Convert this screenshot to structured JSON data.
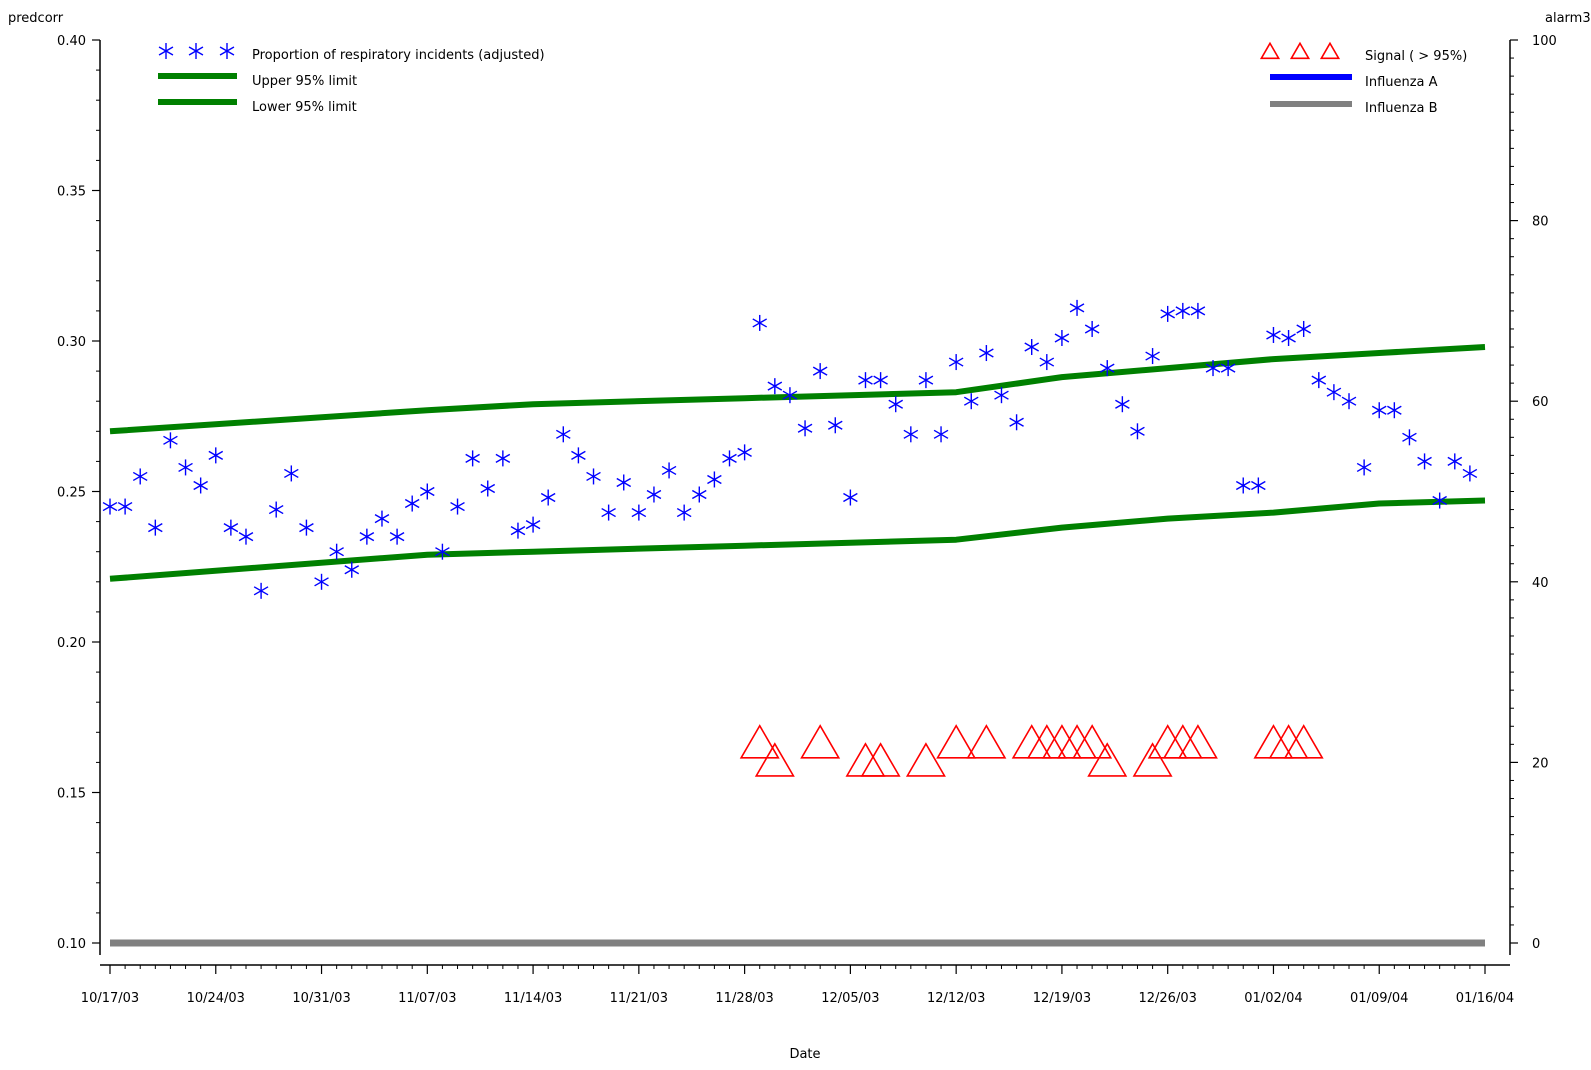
{
  "chart_data": {
    "type": "scatter",
    "xlabel": "Date",
    "ylabel_left": "predcorr",
    "ylabel_right": "alarm3",
    "xlim": [
      "2003-10-17",
      "2004-01-16"
    ],
    "ylim_left": [
      0.1,
      0.4
    ],
    "ylim_right": [
      0,
      100
    ],
    "x_ticks": [
      "10/17/03",
      "10/24/03",
      "10/31/03",
      "11/07/03",
      "11/14/03",
      "11/21/03",
      "11/28/03",
      "12/05/03",
      "12/12/03",
      "12/19/03",
      "12/26/03",
      "01/02/04",
      "01/09/04",
      "01/16/04"
    ],
    "y_ticks_left": [
      "0.10",
      "0.15",
      "0.20",
      "0.25",
      "0.30",
      "0.35",
      "0.40"
    ],
    "y_ticks_right": [
      "0",
      "20",
      "40",
      "60",
      "80",
      "100"
    ],
    "legend_left": [
      {
        "label": "Proportion of respiratory incidents (adjusted)",
        "marker": "asterisk",
        "color": "#0000ff"
      },
      {
        "label": "Upper 95% limit",
        "marker": "line",
        "color": "#008000"
      },
      {
        "label": "Lower 95% limit",
        "marker": "line",
        "color": "#008000"
      }
    ],
    "legend_right": [
      {
        "label": "Signal ( > 95%)",
        "marker": "triangle",
        "color": "#ff0000"
      },
      {
        "label": "Influenza A",
        "marker": "line",
        "color": "#0000ff"
      },
      {
        "label": "Influenza B",
        "marker": "line",
        "color": "#808080"
      }
    ],
    "series": [
      {
        "name": "Proportion of respiratory incidents (adjusted)",
        "axis": "left",
        "marker": "asterisk",
        "color": "#0000ff",
        "points": [
          [
            "2003-10-17",
            0.245
          ],
          [
            "2003-10-18",
            0.245
          ],
          [
            "2003-10-19",
            0.255
          ],
          [
            "2003-10-20",
            0.238
          ],
          [
            "2003-10-21",
            0.267
          ],
          [
            "2003-10-22",
            0.258
          ],
          [
            "2003-10-23",
            0.252
          ],
          [
            "2003-10-24",
            0.262
          ],
          [
            "2003-10-25",
            0.238
          ],
          [
            "2003-10-26",
            0.235
          ],
          [
            "2003-10-27",
            0.217
          ],
          [
            "2003-10-28",
            0.244
          ],
          [
            "2003-10-29",
            0.256
          ],
          [
            "2003-10-30",
            0.238
          ],
          [
            "2003-10-31",
            0.22
          ],
          [
            "2003-11-01",
            0.23
          ],
          [
            "2003-11-02",
            0.224
          ],
          [
            "2003-11-03",
            0.235
          ],
          [
            "2003-11-04",
            0.241
          ],
          [
            "2003-11-05",
            0.235
          ],
          [
            "2003-11-06",
            0.246
          ],
          [
            "2003-11-07",
            0.25
          ],
          [
            "2003-11-08",
            0.23
          ],
          [
            "2003-11-09",
            0.245
          ],
          [
            "2003-11-10",
            0.261
          ],
          [
            "2003-11-11",
            0.251
          ],
          [
            "2003-11-12",
            0.261
          ],
          [
            "2003-11-13",
            0.237
          ],
          [
            "2003-11-14",
            0.239
          ],
          [
            "2003-11-15",
            0.248
          ],
          [
            "2003-11-16",
            0.269
          ],
          [
            "2003-11-17",
            0.262
          ],
          [
            "2003-11-18",
            0.255
          ],
          [
            "2003-11-19",
            0.243
          ],
          [
            "2003-11-20",
            0.253
          ],
          [
            "2003-11-21",
            0.243
          ],
          [
            "2003-11-22",
            0.249
          ],
          [
            "2003-11-23",
            0.257
          ],
          [
            "2003-11-24",
            0.243
          ],
          [
            "2003-11-25",
            0.249
          ],
          [
            "2003-11-26",
            0.254
          ],
          [
            "2003-11-27",
            0.261
          ],
          [
            "2003-11-28",
            0.263
          ],
          [
            "2003-11-29",
            0.306
          ],
          [
            "2003-11-30",
            0.285
          ],
          [
            "2003-12-01",
            0.282
          ],
          [
            "2003-12-02",
            0.271
          ],
          [
            "2003-12-03",
            0.29
          ],
          [
            "2003-12-04",
            0.272
          ],
          [
            "2003-12-05",
            0.248
          ],
          [
            "2003-12-06",
            0.287
          ],
          [
            "2003-12-07",
            0.287
          ],
          [
            "2003-12-08",
            0.279
          ],
          [
            "2003-12-09",
            0.269
          ],
          [
            "2003-12-10",
            0.287
          ],
          [
            "2003-12-11",
            0.269
          ],
          [
            "2003-12-12",
            0.293
          ],
          [
            "2003-12-13",
            0.28
          ],
          [
            "2003-12-14",
            0.296
          ],
          [
            "2003-12-15",
            0.282
          ],
          [
            "2003-12-16",
            0.273
          ],
          [
            "2003-12-17",
            0.298
          ],
          [
            "2003-12-18",
            0.293
          ],
          [
            "2003-12-19",
            0.301
          ],
          [
            "2003-12-20",
            0.311
          ],
          [
            "2003-12-21",
            0.304
          ],
          [
            "2003-12-22",
            0.291
          ],
          [
            "2003-12-23",
            0.279
          ],
          [
            "2003-12-24",
            0.27
          ],
          [
            "2003-12-25",
            0.295
          ],
          [
            "2003-12-26",
            0.309
          ],
          [
            "2003-12-27",
            0.31
          ],
          [
            "2003-12-28",
            0.31
          ],
          [
            "2003-12-29",
            0.291
          ],
          [
            "2003-12-30",
            0.291
          ],
          [
            "2003-12-31",
            0.252
          ],
          [
            "2004-01-01",
            0.252
          ],
          [
            "2004-01-02",
            0.302
          ],
          [
            "2004-01-03",
            0.301
          ],
          [
            "2004-01-04",
            0.304
          ],
          [
            "2004-01-05",
            0.287
          ],
          [
            "2004-01-06",
            0.283
          ],
          [
            "2004-01-07",
            0.28
          ],
          [
            "2004-01-08",
            0.258
          ],
          [
            "2004-01-09",
            0.277
          ],
          [
            "2004-01-10",
            0.277
          ],
          [
            "2004-01-11",
            0.268
          ],
          [
            "2004-01-12",
            0.26
          ],
          [
            "2004-01-13",
            0.247
          ],
          [
            "2004-01-14",
            0.26
          ],
          [
            "2004-01-15",
            0.256
          ]
        ]
      },
      {
        "name": "Upper 95% limit",
        "axis": "left",
        "marker": "line",
        "color": "#008000",
        "points": [
          [
            "2003-10-17",
            0.27
          ],
          [
            "2003-11-07",
            0.277
          ],
          [
            "2003-11-14",
            0.279
          ],
          [
            "2003-11-28",
            0.281
          ],
          [
            "2003-12-05",
            0.282
          ],
          [
            "2003-12-12",
            0.283
          ],
          [
            "2003-12-19",
            0.288
          ],
          [
            "2003-12-26",
            0.291
          ],
          [
            "2004-01-02",
            0.294
          ],
          [
            "2004-01-09",
            0.296
          ],
          [
            "2004-01-16",
            0.298
          ]
        ]
      },
      {
        "name": "Lower 95% limit",
        "axis": "left",
        "marker": "line",
        "color": "#008000",
        "points": [
          [
            "2003-10-17",
            0.221
          ],
          [
            "2003-11-07",
            0.229
          ],
          [
            "2003-11-14",
            0.23
          ],
          [
            "2003-11-28",
            0.232
          ],
          [
            "2003-12-05",
            0.233
          ],
          [
            "2003-12-12",
            0.234
          ],
          [
            "2003-12-19",
            0.238
          ],
          [
            "2003-12-26",
            0.241
          ],
          [
            "2004-01-02",
            0.243
          ],
          [
            "2004-01-09",
            0.246
          ],
          [
            "2004-01-16",
            0.247
          ]
        ]
      },
      {
        "name": "Signal ( > 95%)",
        "axis": "right",
        "marker": "triangle",
        "color": "#ff0000",
        "points": [
          [
            "2003-11-29",
            22
          ],
          [
            "2003-11-30",
            20
          ],
          [
            "2003-12-03",
            22
          ],
          [
            "2003-12-06",
            20
          ],
          [
            "2003-12-07",
            20
          ],
          [
            "2003-12-10",
            20
          ],
          [
            "2003-12-12",
            22
          ],
          [
            "2003-12-14",
            22
          ],
          [
            "2003-12-17",
            22
          ],
          [
            "2003-12-18",
            22
          ],
          [
            "2003-12-19",
            22
          ],
          [
            "2003-12-20",
            22
          ],
          [
            "2003-12-21",
            22
          ],
          [
            "2003-12-22",
            20
          ],
          [
            "2003-12-25",
            20
          ],
          [
            "2003-12-26",
            22
          ],
          [
            "2003-12-27",
            22
          ],
          [
            "2003-12-28",
            22
          ],
          [
            "2004-01-02",
            22
          ],
          [
            "2004-01-03",
            22
          ],
          [
            "2004-01-04",
            22
          ]
        ]
      },
      {
        "name": "Influenza A",
        "axis": "right",
        "marker": "line",
        "color": "#0000ff",
        "points": [
          [
            "2003-10-17",
            0
          ],
          [
            "2004-01-16",
            0
          ]
        ]
      },
      {
        "name": "Influenza B",
        "axis": "right",
        "marker": "line",
        "color": "#808080",
        "points": [
          [
            "2003-10-17",
            0
          ],
          [
            "2004-01-16",
            0
          ]
        ]
      }
    ]
  }
}
